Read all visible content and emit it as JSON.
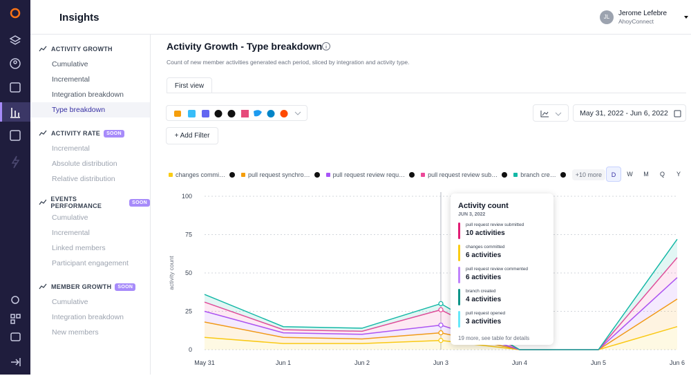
{
  "header": {
    "title": "Insights",
    "user": {
      "initials": "JL",
      "name": "Jerome Lefebre",
      "org": "AhoyConnect"
    }
  },
  "sidebar": [
    {
      "title": "ACTIVITY GROWTH",
      "items": [
        "Cumulative",
        "Incremental",
        "Integration breakdown",
        "Type breakdown"
      ],
      "active_index": 3
    },
    {
      "title": "ACTIVITY RATE",
      "badge": "SOON",
      "items": [
        "Incremental",
        "Absolute distribution",
        "Relative distribution"
      ]
    },
    {
      "title": "EVENTS PERFORMANCE",
      "badge": "SOON",
      "items": [
        "Cumulative",
        "Incremental",
        "Linked members",
        "Participant engagement"
      ]
    },
    {
      "title": "MEMBER GROWTH",
      "badge": "SOON",
      "items": [
        "Cumulative",
        "Integration breakdown",
        "New members"
      ]
    }
  ],
  "page": {
    "subtitle": "Count of new member activities generated each period, sliced by integration and activity type.",
    "tab": "First view",
    "add_filter": "+ Add Filter",
    "date_range": "May 31, 2022 - Jun 6, 2022",
    "legend_more": "+10 more",
    "periods": [
      "D",
      "W",
      "M",
      "Q",
      "Y"
    ],
    "active_period": 0
  },
  "chart_data": {
    "type": "stacked_line",
    "title": "Activity Growth - Type breakdown",
    "y_label": "activity count",
    "categories": [
      "May 31",
      "Jun 1",
      "Jun 2",
      "Jun 3",
      "Jun 4",
      "Jun 5",
      "Jun 6"
    ],
    "series": [
      {
        "name": "changes commi…",
        "color": "#facc15",
        "values": [
          8,
          4,
          4,
          6,
          0,
          0,
          15
        ]
      },
      {
        "name": "pull request synchro…",
        "color": "#f59e0b",
        "values": [
          10,
          4,
          3,
          5,
          0,
          0,
          18
        ]
      },
      {
        "name": "pull request review requ…",
        "color": "#a855f7",
        "values": [
          7,
          3,
          3,
          5,
          0,
          0,
          14
        ]
      },
      {
        "name": "pull request review sub…",
        "color": "#ec4899",
        "values": [
          6,
          2,
          2,
          10,
          0,
          0,
          13
        ]
      },
      {
        "name": "branch cre…",
        "color": "#14b8a6",
        "values": [
          5,
          2,
          2,
          4,
          0,
          0,
          12
        ]
      }
    ],
    "ylim": [
      0,
      100
    ],
    "yticks": [
      0,
      25,
      50,
      75,
      100
    ],
    "grid": true,
    "hover_index": 3
  },
  "tooltip": {
    "title": "Activity count",
    "date": "JUN 3, 2022",
    "items": [
      {
        "label": "pull request review submitted",
        "count": "10 activities",
        "color": "#e11d74"
      },
      {
        "label": "changes committed",
        "count": "6 activities",
        "color": "#facc15"
      },
      {
        "label": "pull request review commented",
        "count": "6 activities",
        "color": "#c084fc"
      },
      {
        "label": "branch created",
        "count": "4 activities",
        "color": "#0d9488"
      },
      {
        "label": "pull request opened",
        "count": "3 activities",
        "color": "#67e8f9"
      }
    ],
    "footer": "19 more, see table for details"
  }
}
